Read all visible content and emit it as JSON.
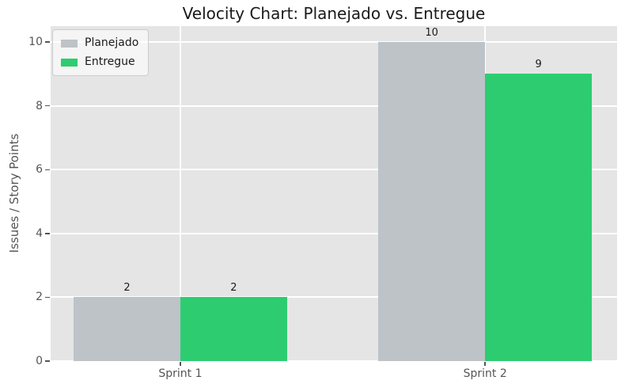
{
  "figure": {
    "title": "Velocity Chart: Planejado vs. Entregue",
    "ylabel": "Issues / Story Points"
  },
  "colors": {
    "figure_bg": "#ffffff",
    "plot_bg": "#e5e5e5",
    "grid": "#ffffff",
    "tick_text": "#555555",
    "title_text": "#1a1a1a",
    "value_label_text": "#1a1a1a",
    "planejado_bar": "#bdc3c7",
    "entregue_bar": "#2ecc71",
    "legend_border": "#cccccc"
  },
  "chart_data": {
    "type": "bar",
    "title": "Velocity Chart: Planejado vs. Entregue",
    "xlabel": "",
    "ylabel": "Issues / Story Points",
    "categories": [
      "Sprint 1",
      "Sprint 2"
    ],
    "series": [
      {
        "name": "Planejado",
        "color": "#bdc3c7",
        "values": [
          2,
          10
        ]
      },
      {
        "name": "Entregue",
        "color": "#2ecc71",
        "values": [
          2,
          9
        ]
      }
    ],
    "yticks": [
      0,
      2,
      4,
      6,
      8,
      10
    ],
    "ylim": [
      0,
      10.5
    ],
    "grid": true,
    "legend_position": "upper left",
    "x_centers_pct": [
      22.9,
      76.7
    ],
    "bar_width_pct": 18.85
  }
}
